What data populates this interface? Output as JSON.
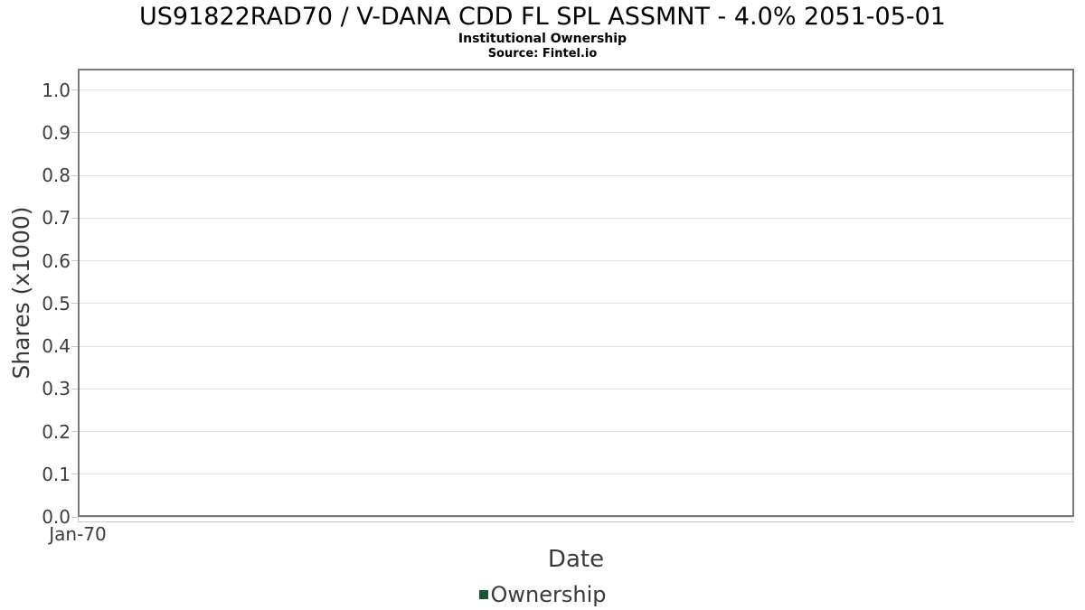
{
  "chart_data": {
    "type": "line",
    "title": "US91822RAD70 / V-DANA CDD FL SPL ASSMNT - 4.0% 2051-05-01",
    "subtitle": "Institutional Ownership",
    "source": "Source: Fintel.io",
    "xlabel": "Date",
    "ylabel": "Shares (x1000)",
    "yticks": [
      "1.0",
      "0.9",
      "0.8",
      "0.7",
      "0.6",
      "0.5",
      "0.4",
      "0.3",
      "0.2",
      "0.1",
      "0.0"
    ],
    "xticks": [
      "Jan-70"
    ],
    "ylim": [
      0,
      1.05
    ],
    "grid": true,
    "legend_position": "bottom-center",
    "series": [
      {
        "name": "Ownership",
        "color": "#1b5633",
        "x": [],
        "values": []
      }
    ],
    "colors": {
      "plot_border": "#7a7a7a",
      "grid_line": "#e4e4e4",
      "tick_mark": "#cccccc",
      "tick_text": "#3d3d3d",
      "axis_title_text": "#3a3a3a",
      "title_text": "#000000",
      "legend_swatch": "#1b5633",
      "background": "#ffffff"
    }
  }
}
